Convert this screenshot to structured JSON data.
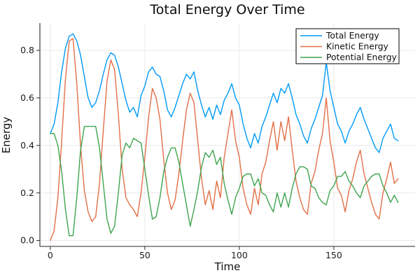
{
  "figure": {
    "title": "Total Energy Over Time",
    "xlabel": "Time",
    "ylabel": "Energy"
  },
  "legend": {
    "position": "top-right",
    "entries": [
      "Total Energy",
      "Kinetic Energy",
      "Potential Energy"
    ]
  },
  "colors": {
    "total_energy": "#009AF9",
    "kinetic_energy": "#E36F47",
    "potential_energy": "#3EA44E",
    "axis": "#2a2a2a",
    "grid": "#e4e4e4",
    "background": "#ffffff"
  },
  "chart_data": {
    "type": "line",
    "title": "Total Energy Over Time",
    "xlabel": "Time",
    "ylabel": "Energy",
    "xlim": [
      -5.5,
      193
    ],
    "ylim": [
      -0.025,
      0.915
    ],
    "xticks": [
      0,
      50,
      100,
      150
    ],
    "xtick_labels": [
      "0",
      "50",
      "100",
      "150"
    ],
    "yticks": [
      0.0,
      0.2,
      0.4,
      0.6,
      0.8
    ],
    "ytick_labels": [
      "0.0",
      "0.2",
      "0.4",
      "0.6",
      "0.8"
    ],
    "grid": true,
    "legend_position": "top-right",
    "x": [
      0,
      2,
      4,
      6,
      8,
      10,
      12,
      14,
      16,
      18,
      20,
      22,
      24,
      26,
      28,
      30,
      32,
      34,
      36,
      38,
      40,
      42,
      44,
      46,
      48,
      50,
      52,
      54,
      56,
      58,
      60,
      62,
      64,
      66,
      68,
      70,
      72,
      74,
      76,
      78,
      80,
      82,
      84,
      86,
      88,
      90,
      92,
      94,
      96,
      98,
      100,
      102,
      104,
      106,
      108,
      110,
      112,
      114,
      116,
      118,
      120,
      122,
      124,
      126,
      128,
      130,
      132,
      134,
      136,
      138,
      140,
      142,
      144,
      146,
      148,
      150,
      152,
      154,
      156,
      158,
      160,
      162,
      164,
      166,
      168,
      170,
      172,
      174,
      176,
      178,
      180,
      182,
      184
    ],
    "series": [
      {
        "name": "Total Energy",
        "color": "#009AF9",
        "values": [
          0.45,
          0.49,
          0.58,
          0.71,
          0.81,
          0.86,
          0.87,
          0.84,
          0.78,
          0.69,
          0.6,
          0.56,
          0.58,
          0.63,
          0.7,
          0.76,
          0.79,
          0.78,
          0.73,
          0.66,
          0.59,
          0.54,
          0.56,
          0.52,
          0.61,
          0.65,
          0.71,
          0.73,
          0.7,
          0.69,
          0.63,
          0.55,
          0.52,
          0.56,
          0.61,
          0.66,
          0.7,
          0.68,
          0.71,
          0.63,
          0.57,
          0.52,
          0.56,
          0.51,
          0.57,
          0.53,
          0.59,
          0.62,
          0.66,
          0.6,
          0.57,
          0.49,
          0.43,
          0.39,
          0.45,
          0.41,
          0.48,
          0.52,
          0.57,
          0.62,
          0.58,
          0.64,
          0.62,
          0.66,
          0.6,
          0.53,
          0.49,
          0.44,
          0.41,
          0.47,
          0.51,
          0.56,
          0.61,
          0.75,
          0.63,
          0.56,
          0.49,
          0.46,
          0.41,
          0.46,
          0.49,
          0.53,
          0.56,
          0.51,
          0.47,
          0.43,
          0.39,
          0.37,
          0.43,
          0.46,
          0.49,
          0.43,
          0.42
        ]
      },
      {
        "name": "Kinetic Energy",
        "color": "#E36F47",
        "values": [
          0.0,
          0.04,
          0.18,
          0.42,
          0.68,
          0.84,
          0.85,
          0.66,
          0.4,
          0.21,
          0.12,
          0.08,
          0.1,
          0.24,
          0.46,
          0.67,
          0.76,
          0.72,
          0.53,
          0.3,
          0.18,
          0.15,
          0.13,
          0.1,
          0.2,
          0.35,
          0.52,
          0.64,
          0.6,
          0.51,
          0.34,
          0.2,
          0.13,
          0.17,
          0.28,
          0.42,
          0.55,
          0.62,
          0.58,
          0.42,
          0.26,
          0.15,
          0.21,
          0.13,
          0.25,
          0.18,
          0.35,
          0.45,
          0.55,
          0.42,
          0.35,
          0.22,
          0.15,
          0.11,
          0.22,
          0.15,
          0.28,
          0.33,
          0.42,
          0.5,
          0.38,
          0.5,
          0.42,
          0.52,
          0.38,
          0.25,
          0.18,
          0.13,
          0.11,
          0.24,
          0.29,
          0.38,
          0.45,
          0.6,
          0.42,
          0.33,
          0.22,
          0.19,
          0.12,
          0.21,
          0.26,
          0.33,
          0.38,
          0.28,
          0.22,
          0.16,
          0.11,
          0.09,
          0.2,
          0.26,
          0.33,
          0.24,
          0.26
        ]
      },
      {
        "name": "Potential Energy",
        "color": "#3EA44E",
        "values": [
          0.45,
          0.45,
          0.4,
          0.29,
          0.13,
          0.02,
          0.02,
          0.18,
          0.38,
          0.48,
          0.48,
          0.48,
          0.48,
          0.39,
          0.24,
          0.09,
          0.03,
          0.06,
          0.2,
          0.36,
          0.41,
          0.39,
          0.43,
          0.42,
          0.41,
          0.3,
          0.19,
          0.09,
          0.1,
          0.18,
          0.29,
          0.35,
          0.39,
          0.39,
          0.33,
          0.24,
          0.15,
          0.06,
          0.13,
          0.21,
          0.31,
          0.37,
          0.35,
          0.38,
          0.32,
          0.35,
          0.24,
          0.17,
          0.11,
          0.18,
          0.22,
          0.27,
          0.28,
          0.28,
          0.23,
          0.26,
          0.2,
          0.19,
          0.15,
          0.12,
          0.2,
          0.14,
          0.2,
          0.14,
          0.22,
          0.28,
          0.31,
          0.31,
          0.3,
          0.23,
          0.22,
          0.18,
          0.16,
          0.15,
          0.21,
          0.23,
          0.27,
          0.27,
          0.29,
          0.25,
          0.23,
          0.2,
          0.18,
          0.23,
          0.25,
          0.27,
          0.28,
          0.28,
          0.23,
          0.2,
          0.16,
          0.19,
          0.16
        ]
      }
    ]
  }
}
